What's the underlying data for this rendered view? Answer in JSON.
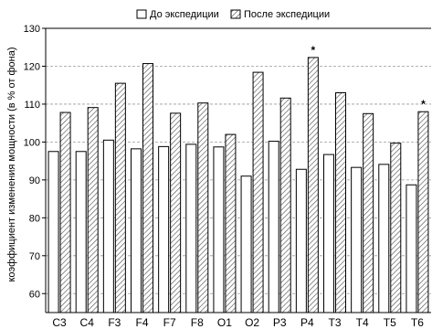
{
  "chart_data": {
    "type": "bar",
    "title": "",
    "xlabel": "",
    "ylabel": "коэффициент изменения мощности (в % от фона)",
    "ylim": [
      55,
      130
    ],
    "yticks": [
      60,
      70,
      80,
      90,
      100,
      110,
      120,
      130
    ],
    "grid": "horizontal dashed",
    "legend_position": "top",
    "categories": [
      "C3",
      "C4",
      "F3",
      "F4",
      "F7",
      "F8",
      "O1",
      "O2",
      "P3",
      "P4",
      "T3",
      "T4",
      "T5",
      "T6"
    ],
    "series": [
      {
        "name": "До экспедиции",
        "color": "#ffffff",
        "pattern": "none",
        "values": [
          97.5,
          97.5,
          100.5,
          98.2,
          98.8,
          99.4,
          98.7,
          91.0,
          100.2,
          92.8,
          96.7,
          93.3,
          94.1,
          88.7
        ]
      },
      {
        "name": "После экспедиции",
        "color": "#d9d9d9",
        "pattern": "hatch",
        "values": [
          107.8,
          109.1,
          115.5,
          120.7,
          107.6,
          110.3,
          102.0,
          118.4,
          111.6,
          122.3,
          113.0,
          107.5,
          99.7,
          108.0
        ]
      }
    ],
    "annotations": [
      {
        "category": "P4",
        "series": "После экспедиции",
        "text": "*"
      },
      {
        "category": "T6",
        "series": "После экспедиции",
        "text": "*"
      }
    ]
  }
}
